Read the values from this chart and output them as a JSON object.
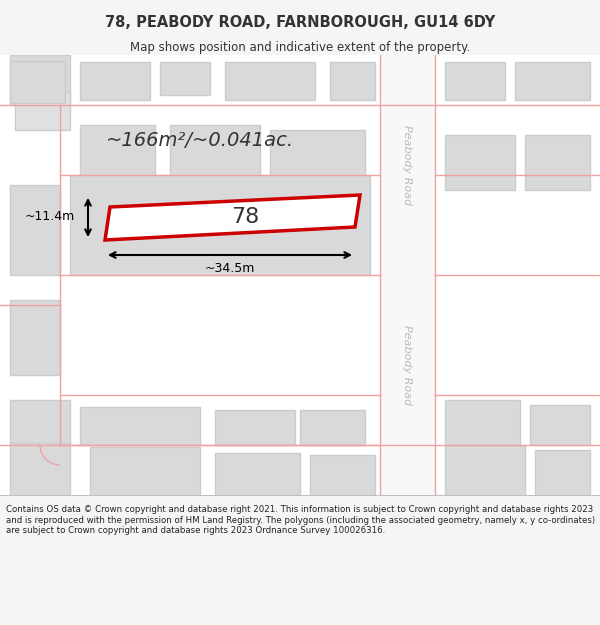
{
  "title_line1": "78, PEABODY ROAD, FARNBOROUGH, GU14 6DY",
  "title_line2": "Map shows position and indicative extent of the property.",
  "area_text": "~166m²/~0.041ac.",
  "property_number": "78",
  "dim_width": "~34.5m",
  "dim_height": "~11.4m",
  "road_label": "Peabody Road",
  "footer_text": "Contains OS data © Crown copyright and database right 2021. This information is subject to Crown copyright and database rights 2023 and is reproduced with the permission of HM Land Registry. The polygons (including the associated geometry, namely x, y co-ordinates) are subject to Crown copyright and database rights 2023 Ordnance Survey 100026316.",
  "bg_color": "#f5f5f5",
  "map_bg": "#ffffff",
  "building_fill": "#d9d9d9",
  "building_edge": "#cccccc",
  "road_fill": "#f5f5f5",
  "road_line": "#f0a0a0",
  "property_edge": "#cc0000",
  "property_fill": "#ffffff",
  "dim_color": "#000000",
  "text_color": "#333333",
  "footer_bg": "#ffffff",
  "title_color": "#333333"
}
